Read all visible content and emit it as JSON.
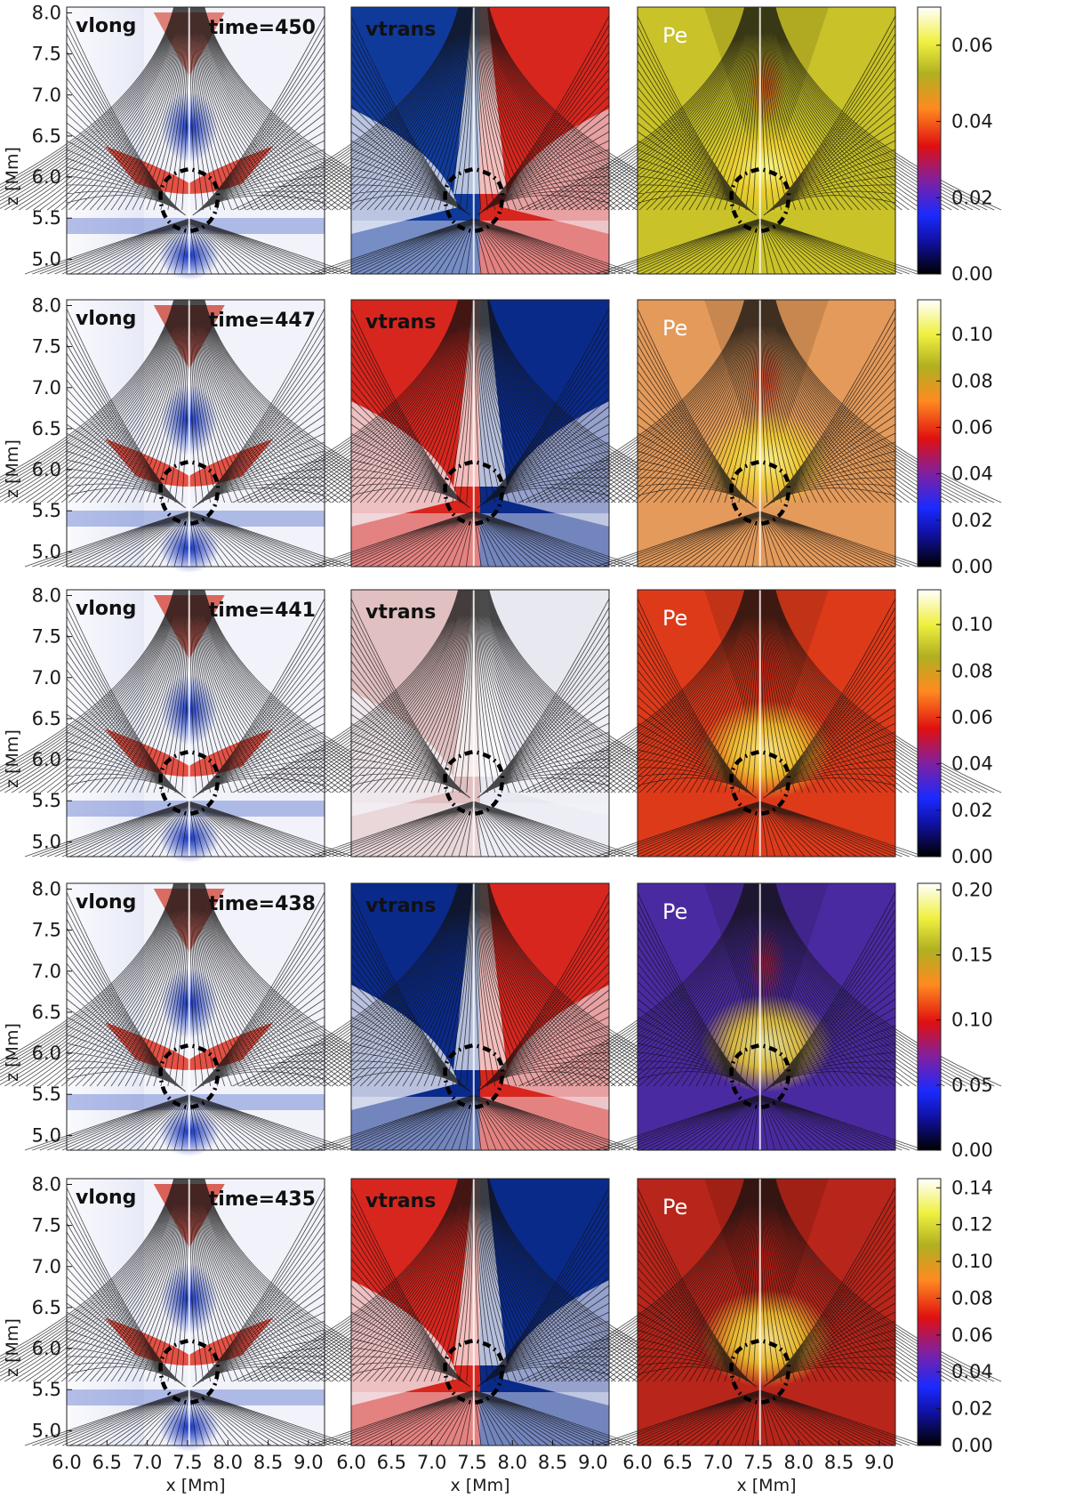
{
  "figure": {
    "x_axis_label": "x [Mm]",
    "y_axis_label": "z [Mm]",
    "x_ticks": [
      "6.0",
      "6.5",
      "7.0",
      "7.5",
      "8.0",
      "8.5",
      "9.0"
    ],
    "y_ticks": [
      "5.0",
      "5.5",
      "6.0",
      "6.5",
      "7.0",
      "7.5",
      "8.0"
    ],
    "rows": [
      {
        "time_label": "time=450",
        "vlong_label": "vlong",
        "vtrans_label": "vtrans",
        "pe_label": "Pe",
        "cbar_ticks": [
          "0.00",
          "0.02",
          "0.04",
          "0.06"
        ],
        "cbar_max": 0.07,
        "vlong_top": "#d85a4a",
        "vtrans_left": "#103a9a",
        "vtrans_right": "#d7261e",
        "pe_bg": "#c9c228"
      },
      {
        "time_label": "time=447",
        "vlong_label": "vlong",
        "vtrans_label": "vtrans",
        "pe_label": "Pe",
        "cbar_ticks": [
          "0.00",
          "0.02",
          "0.04",
          "0.06",
          "0.08",
          "0.10"
        ],
        "cbar_max": 0.115,
        "vlong_top": "#c83a2a",
        "vtrans_left": "#d7261e",
        "vtrans_right": "#0a2a8a",
        "pe_bg": "#e49a5a"
      },
      {
        "time_label": "time=441",
        "vlong_label": "vlong",
        "vtrans_label": "vtrans",
        "pe_label": "Pe",
        "cbar_ticks": [
          "0.00",
          "0.02",
          "0.04",
          "0.06",
          "0.08",
          "0.10"
        ],
        "cbar_max": 0.115,
        "vlong_top": "#d33a2a",
        "vtrans_left": "#e0c0c0",
        "vtrans_right": "#e8e8f0",
        "pe_bg": "#dd3a1a"
      },
      {
        "time_label": "time=438",
        "vlong_label": "vlong",
        "vtrans_label": "vtrans",
        "pe_label": "Pe",
        "cbar_ticks": [
          "0.00",
          "0.05",
          "0.10",
          "0.15",
          "0.20"
        ],
        "cbar_max": 0.205,
        "vlong_top": "#d04030",
        "vtrans_left": "#0a2a8a",
        "vtrans_right": "#d7261e",
        "pe_bg": "#4a2aa0"
      },
      {
        "time_label": "time=435",
        "vlong_label": "vlong",
        "vtrans_label": "vtrans",
        "pe_label": "Pe",
        "cbar_ticks": [
          "0.00",
          "0.02",
          "0.04",
          "0.06",
          "0.08",
          "0.10",
          "0.12",
          "0.14"
        ],
        "cbar_max": 0.145,
        "vlong_top": "#d03020",
        "vtrans_left": "#d7261e",
        "vtrans_right": "#0a2a8a",
        "pe_bg": "#b8251a"
      }
    ]
  }
}
